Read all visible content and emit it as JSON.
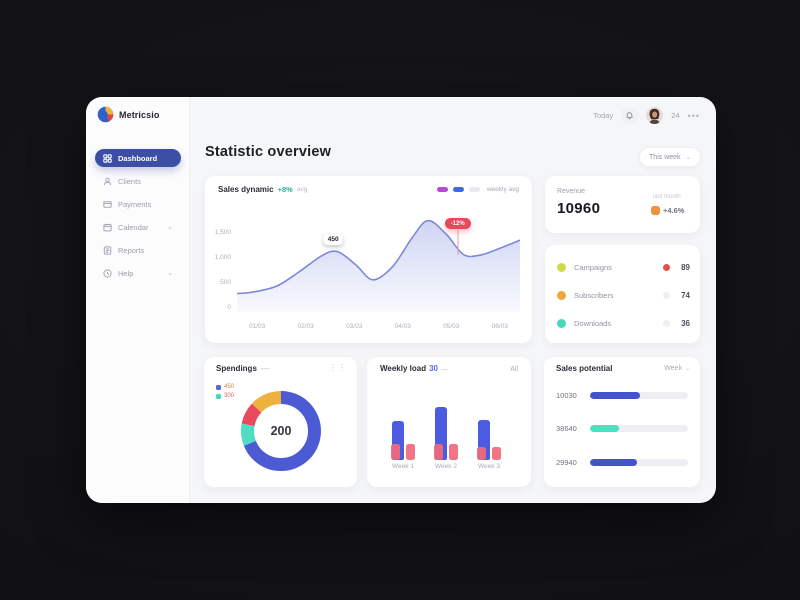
{
  "brand": {
    "name": "Metricsio"
  },
  "header": {
    "hint": "Today",
    "notif_icon": "bell-icon",
    "count": "24",
    "menu": "•••"
  },
  "sidebar": {
    "items": [
      {
        "label": "Dashboard",
        "active": true,
        "chevron": false
      },
      {
        "label": "Clients",
        "active": false,
        "chevron": false
      },
      {
        "label": "Payments",
        "active": false,
        "chevron": false
      },
      {
        "label": "Calendar",
        "active": false,
        "chevron": true
      },
      {
        "label": "Reports",
        "active": false,
        "chevron": false
      },
      {
        "label": "Help",
        "active": false,
        "chevron": true
      }
    ],
    "chevron_glyph": "⌄"
  },
  "page": {
    "title": "Statistic overview",
    "period_button": {
      "label": "This week",
      "chevron": "⌄"
    }
  },
  "cards": {
    "revenue": {
      "label": "Revenue",
      "value": "10960",
      "period": "last month",
      "delta": "+4.6%"
    },
    "breakdown": {
      "rows": [
        {
          "label": "Campaigns",
          "value": "89",
          "dot": "#cdda49",
          "status": "#e25050"
        },
        {
          "label": "Subscribers",
          "value": "74",
          "dot": "#edaa3c",
          "status": "#f0f0f3"
        },
        {
          "label": "Downloads",
          "value": "36",
          "dot": "#47d8ba",
          "status": "#f0f0f3"
        }
      ]
    }
  },
  "chart_data": [
    {
      "type": "area",
      "title": "Sales dynamic",
      "delta": "+8%",
      "note": "avg",
      "legend": [
        {
          "color": "#b44bd8"
        },
        {
          "color": "#3f6ae0"
        },
        {
          "color": "#e8eaee"
        }
      ],
      "legend_label": "weekly avg",
      "x_labels": [
        "01/03",
        "02/03",
        "03/03",
        "04/03",
        "05/03",
        "06/03"
      ],
      "y_labels": [
        "1,500",
        "1,000",
        "500",
        "0"
      ],
      "ylim": [
        0,
        1600
      ],
      "x": [
        0,
        0.06,
        0.14,
        0.22,
        0.3,
        0.355,
        0.42,
        0.48,
        0.55,
        0.62,
        0.675,
        0.74,
        0.8,
        0.86,
        0.93,
        1.0
      ],
      "values": [
        320,
        350,
        450,
        700,
        980,
        1050,
        820,
        560,
        790,
        1300,
        1590,
        1350,
        1000,
        990,
        1110,
        1250
      ],
      "line_color": "#7c89da",
      "fill_from": "#c9d0f2",
      "tooltip": {
        "x": 0.34,
        "value_offset": 140,
        "label": "450"
      },
      "badge": {
        "x": 0.78,
        "label": "-12%",
        "top": 42,
        "line_to": 1000
      }
    },
    {
      "type": "pie",
      "title": "Spendings",
      "dash": "—",
      "menu_icon": "kebab-icon",
      "center_value": "200",
      "legend": [
        {
          "color": "#5b6bd5",
          "label": "450",
          "text_color": "#c97e4f"
        },
        {
          "color": "#47d8ba",
          "label": "300",
          "text_color": "#c96a55"
        }
      ],
      "segments": [
        {
          "name": "main",
          "pct": 69,
          "color": "#4c5bd4"
        },
        {
          "name": "teal",
          "pct": 9,
          "color": "#4fdcc3"
        },
        {
          "name": "red",
          "pct": 9,
          "color": "#e9485e"
        },
        {
          "name": "amber",
          "pct": 13,
          "color": "#efb13e"
        }
      ]
    },
    {
      "type": "bar",
      "title": "Weekly load",
      "accent": "30",
      "dash": "—",
      "action": "All",
      "categories": [
        "Week 1",
        "Week 2",
        "Week 3"
      ],
      "series": [
        {
          "name": "blue",
          "color": "#4b5ce1",
          "values": [
            52,
            71,
            53
          ]
        },
        {
          "name": "red",
          "color": "#f1697c",
          "values": [
            21,
            21,
            18
          ]
        }
      ],
      "ymax": 100
    },
    {
      "type": "bar",
      "title": "Sales potential",
      "filter": {
        "label": "Week",
        "chevron": "⌄"
      },
      "rows": [
        {
          "label": "10030",
          "pct": 51,
          "color": "#4353cc"
        },
        {
          "label": "38640",
          "pct": 30,
          "color": "#4ce0c0"
        },
        {
          "label": "29940",
          "pct": 48,
          "color": "#4353cc"
        }
      ]
    }
  ]
}
